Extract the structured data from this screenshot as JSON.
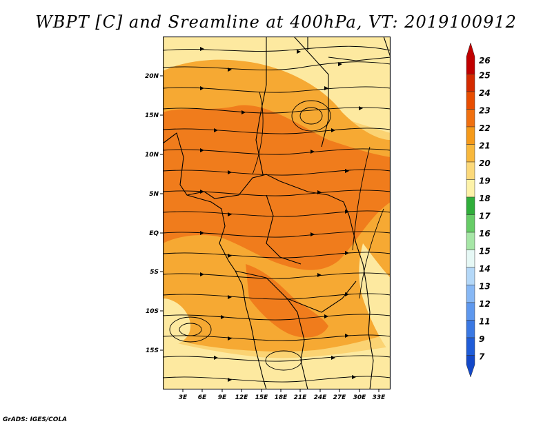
{
  "title": "WBPT [C] and Sreamline at 400hPa, VT: 2019100912",
  "credit": "GrADS: IGES/COLA",
  "lat_labels": [
    "20N",
    "15N",
    "10N",
    "5N",
    "EQ",
    "5S",
    "10S",
    "15S"
  ],
  "lon_labels": [
    "3E",
    "6E",
    "9E",
    "12E",
    "15E",
    "18E",
    "21E",
    "24E",
    "27E",
    "30E",
    "33E"
  ],
  "colorbar": {
    "labels": [
      "26",
      "25",
      "24",
      "23",
      "22",
      "21",
      "20",
      "19",
      "18",
      "17",
      "16",
      "15",
      "14",
      "13",
      "12",
      "11",
      "9",
      "7"
    ],
    "colors": [
      "#c00000",
      "#d42a00",
      "#e84d00",
      "#f07010",
      "#f59a1a",
      "#f8b83c",
      "#fcd97a",
      "#fdf2a8",
      "#2fae3a",
      "#66cc66",
      "#a6e6a6",
      "#e6f8f5",
      "#b4d8f8",
      "#87b8f5",
      "#5e98ee",
      "#3a78e3",
      "#1f5cd8",
      "#1348c8"
    ]
  },
  "field_colors": {
    "pale": "#fde9a0",
    "light": "#fbd373",
    "medium": "#f6a933",
    "dark": "#f07c1c",
    "darkest": "#ea6818"
  }
}
